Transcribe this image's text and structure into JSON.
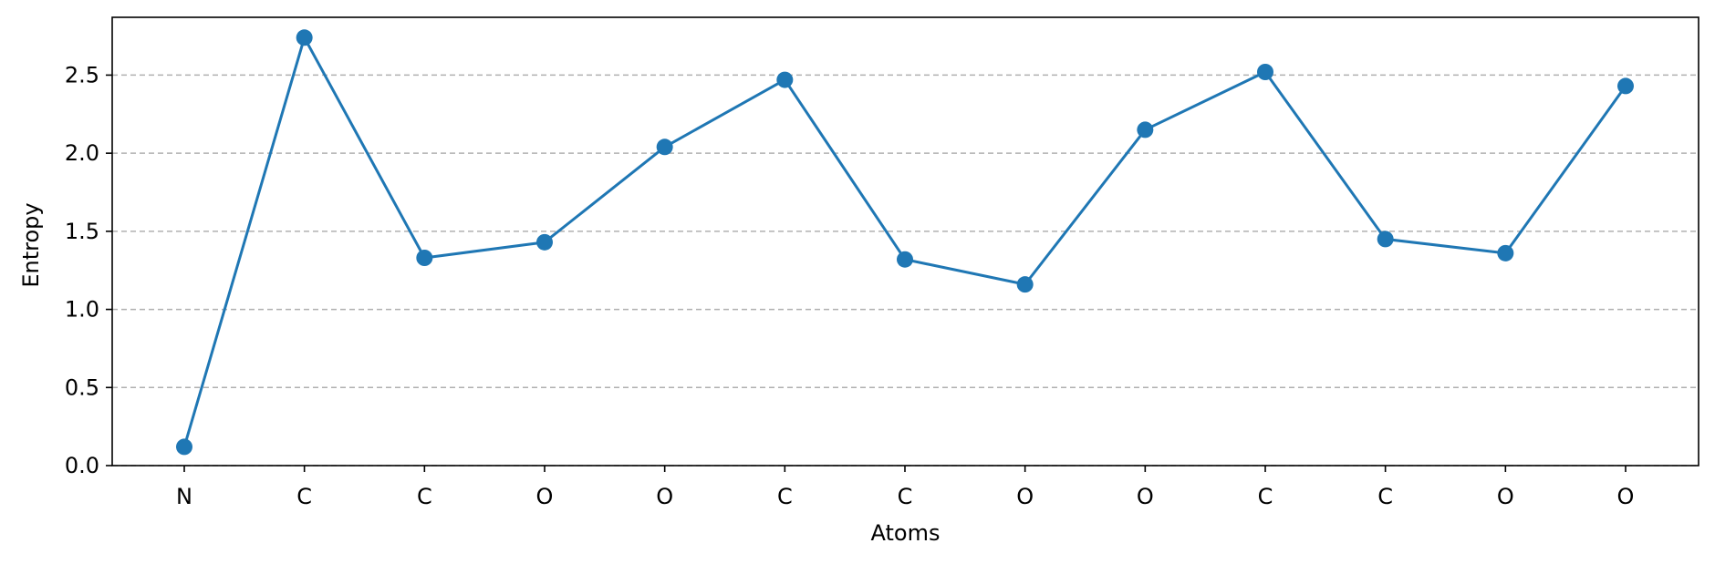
{
  "chart_data": {
    "type": "line",
    "title": "",
    "xlabel": "Atoms",
    "ylabel": "Entropy",
    "categories": [
      "N",
      "C",
      "C",
      "O",
      "O",
      "C",
      "C",
      "O",
      "O",
      "C",
      "C",
      "O",
      "O"
    ],
    "series": [
      {
        "values": [
          0.12,
          2.74,
          1.33,
          1.43,
          2.04,
          2.47,
          1.32,
          1.16,
          2.15,
          2.52,
          1.45,
          1.36,
          2.43
        ],
        "color": "#1f77b4",
        "marker": "circle"
      }
    ],
    "ylim": [
      0,
      2.87
    ],
    "yticks": [
      0.0,
      0.5,
      1.0,
      1.5,
      2.0,
      2.5
    ],
    "ytick_labels": [
      "0.0",
      "0.5",
      "1.0",
      "1.5",
      "2.0",
      "2.5"
    ],
    "grid": "y-dashed",
    "grid_color": "#b0b0b0",
    "legend": "none"
  }
}
